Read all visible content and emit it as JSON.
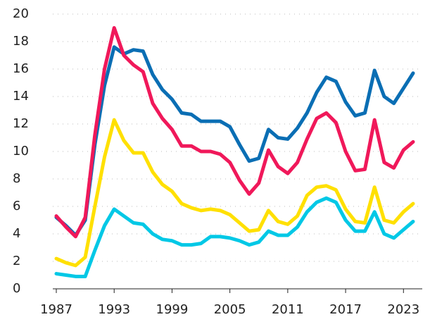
{
  "chart_data": {
    "type": "line",
    "x": [
      1987,
      1988,
      1989,
      1990,
      1991,
      1992,
      1993,
      1994,
      1995,
      1996,
      1997,
      1998,
      1999,
      2000,
      2001,
      2002,
      2003,
      2004,
      2005,
      2006,
      2007,
      2008,
      2009,
      2010,
      2011,
      2012,
      2013,
      2014,
      2015,
      2016,
      2017,
      2018,
      2019,
      2020,
      2021,
      2022,
      2023,
      2024
    ],
    "series": [
      {
        "color": "#0a6eb4",
        "values": [
          5.2,
          4.6,
          3.9,
          5.0,
          10.5,
          14.8,
          17.6,
          17.1,
          17.4,
          17.3,
          15.6,
          14.5,
          13.8,
          12.8,
          12.7,
          12.2,
          12.2,
          12.2,
          11.8,
          10.5,
          9.3,
          9.5,
          11.6,
          11.0,
          10.9,
          11.7,
          12.8,
          14.3,
          15.4,
          15.1,
          13.6,
          12.6,
          12.8,
          15.9,
          14.0,
          13.5,
          14.6,
          15.7
        ]
      },
      {
        "color": "#f0185a",
        "values": [
          5.3,
          4.5,
          3.8,
          5.2,
          11.2,
          16.0,
          19.0,
          17.0,
          16.3,
          15.8,
          13.5,
          12.4,
          11.6,
          10.4,
          10.4,
          10.0,
          10.0,
          9.8,
          9.2,
          7.9,
          6.9,
          7.7,
          10.1,
          8.9,
          8.4,
          9.2,
          10.9,
          12.4,
          12.8,
          12.1,
          10.0,
          8.6,
          8.7,
          12.3,
          9.2,
          8.8,
          10.1,
          10.7
        ]
      },
      {
        "color": "#ffe000",
        "values": [
          2.2,
          1.9,
          1.7,
          2.3,
          6.0,
          9.6,
          12.3,
          10.8,
          9.9,
          9.9,
          8.5,
          7.6,
          7.1,
          6.2,
          5.9,
          5.7,
          5.8,
          5.7,
          5.4,
          4.8,
          4.2,
          4.3,
          5.7,
          4.9,
          4.7,
          5.3,
          6.8,
          7.4,
          7.5,
          7.2,
          5.8,
          4.9,
          4.8,
          7.4,
          5.0,
          4.8,
          5.6,
          6.2
        ]
      },
      {
        "color": "#00c8e6",
        "values": [
          1.1,
          1.0,
          0.9,
          0.9,
          2.8,
          4.6,
          5.8,
          5.3,
          4.8,
          4.7,
          4.0,
          3.6,
          3.5,
          3.2,
          3.2,
          3.3,
          3.8,
          3.8,
          3.7,
          3.5,
          3.2,
          3.4,
          4.2,
          3.9,
          3.9,
          4.5,
          5.6,
          6.3,
          6.6,
          6.3,
          5.0,
          4.2,
          4.2,
          5.6,
          4.0,
          3.7,
          4.3,
          4.9
        ]
      }
    ],
    "xlim": [
      1987,
      2024
    ],
    "xticks": [
      1987,
      1993,
      1999,
      2005,
      2011,
      2017,
      2023
    ],
    "ylim": [
      0,
      20
    ],
    "yticks": [
      0,
      2,
      4,
      6,
      8,
      10,
      12,
      14,
      16,
      18,
      20
    ],
    "grid": true
  }
}
